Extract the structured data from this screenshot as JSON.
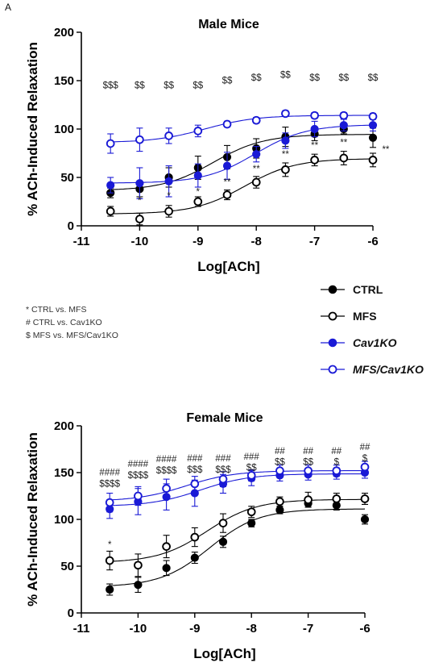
{
  "panel_label": "A",
  "legend": [
    {
      "label": "CTRL",
      "color": "#000000",
      "filled": true,
      "italic": false
    },
    {
      "label": "MFS",
      "color": "#000000",
      "filled": false,
      "italic": false
    },
    {
      "label": "Cav1KO",
      "color": "#1a1ad6",
      "filled": true,
      "italic": true
    },
    {
      "label": "MFS/Cav1KO",
      "color": "#1a1ad6",
      "filled": false,
      "italic": true
    }
  ],
  "notes": [
    "* CTRL vs. MFS",
    "# CTRL vs. Cav1KO",
    "$ MFS vs. MFS/Cav1KO"
  ],
  "chart_data": [
    {
      "type": "scatter",
      "title": "Male Mice",
      "xlabel": "Log[ACh]",
      "ylabel": "% ACh-Induced Relaxation",
      "xlim": [
        -11,
        -6
      ],
      "ylim": [
        0,
        200
      ],
      "xticks": [
        -11,
        -10,
        -9,
        -8,
        -7,
        -6
      ],
      "yticks": [
        0,
        50,
        100,
        150,
        200
      ],
      "x": [
        -10.5,
        -10,
        -9.5,
        -9,
        -8.5,
        -8,
        -7.5,
        -7,
        -6.5,
        -6
      ],
      "fit_curves": true,
      "series": [
        {
          "name": "CTRL",
          "color": "#000000",
          "filled": true,
          "values": [
            34,
            38,
            50,
            60,
            71,
            80,
            92,
            95,
            100,
            91
          ],
          "errors": [
            5,
            8,
            10,
            12,
            12,
            10,
            10,
            7,
            5,
            10
          ]
        },
        {
          "name": "MFS",
          "color": "#000000",
          "filled": false,
          "values": [
            15,
            7,
            15,
            25,
            32,
            45,
            58,
            68,
            70,
            68
          ],
          "errors": [
            5,
            6,
            6,
            5,
            5,
            6,
            7,
            6,
            7,
            7
          ]
        },
        {
          "name": "Cav1KO",
          "color": "#1a1ad6",
          "filled": true,
          "values": [
            42,
            44,
            46,
            52,
            62,
            74,
            88,
            100,
            104,
            104
          ],
          "errors": [
            8,
            16,
            16,
            12,
            14,
            8,
            8,
            8,
            6,
            6
          ]
        },
        {
          "name": "MFS/Cav1KO",
          "color": "#1a1ad6",
          "filled": false,
          "values": [
            85,
            89,
            93,
            98,
            105,
            109,
            116,
            114,
            114,
            113
          ],
          "errors": [
            10,
            12,
            8,
            6,
            3,
            3,
            3,
            3,
            3,
            3
          ]
        }
      ],
      "annotations": [
        {
          "x": -10.5,
          "y": 142,
          "text": "$$$"
        },
        {
          "x": -10,
          "y": 142,
          "text": "$$"
        },
        {
          "x": -9.5,
          "y": 142,
          "text": "$$"
        },
        {
          "x": -9,
          "y": 142,
          "text": "$$"
        },
        {
          "x": -8.5,
          "y": 147,
          "text": "$$"
        },
        {
          "x": -8,
          "y": 150,
          "text": "$$"
        },
        {
          "x": -7.5,
          "y": 153,
          "text": "$$"
        },
        {
          "x": -7,
          "y": 150,
          "text": "$$"
        },
        {
          "x": -6.5,
          "y": 150,
          "text": "$$"
        },
        {
          "x": -6,
          "y": 150,
          "text": "$$"
        },
        {
          "x": -10,
          "y": 23,
          "text": "*"
        },
        {
          "x": -9.5,
          "y": 28,
          "text": "*"
        },
        {
          "x": -9,
          "y": 32,
          "text": "*"
        },
        {
          "x": -8.5,
          "y": 42,
          "text": "**"
        },
        {
          "x": -8,
          "y": 56,
          "text": "**"
        },
        {
          "x": -7.5,
          "y": 71,
          "text": "**"
        },
        {
          "x": -7,
          "y": 80,
          "text": "**"
        },
        {
          "x": -6.5,
          "y": 83,
          "text": "**"
        },
        {
          "x": -5.78,
          "y": 76,
          "text": "**"
        }
      ]
    },
    {
      "type": "scatter",
      "title": "Female Mice",
      "xlabel": "Log[ACh]",
      "ylabel": "% ACh-Induced Relaxation",
      "xlim": [
        -11,
        -6
      ],
      "ylim": [
        0,
        200
      ],
      "xticks": [
        -11,
        -10,
        -9,
        -8,
        -7,
        -6
      ],
      "yticks": [
        0,
        50,
        100,
        150,
        200
      ],
      "x": [
        -10.5,
        -10,
        -9.5,
        -9,
        -8.5,
        -8,
        -7.5,
        -7,
        -6.5,
        -6
      ],
      "fit_curves": true,
      "series": [
        {
          "name": "CTRL",
          "color": "#000000",
          "filled": true,
          "values": [
            25,
            30,
            48,
            59,
            76,
            96,
            110,
            117,
            115,
            100
          ],
          "errors": [
            6,
            8,
            8,
            6,
            6,
            4,
            4,
            4,
            5,
            5
          ]
        },
        {
          "name": "MFS",
          "color": "#000000",
          "filled": false,
          "values": [
            56,
            51,
            71,
            81,
            96,
            108,
            119,
            121,
            122,
            122
          ],
          "errors": [
            10,
            12,
            12,
            10,
            10,
            6,
            5,
            8,
            6,
            6
          ]
        },
        {
          "name": "Cav1KO",
          "color": "#1a1ad6",
          "filled": true,
          "values": [
            111,
            119,
            124,
            128,
            138,
            144,
            147,
            148,
            149,
            150
          ],
          "errors": [
            10,
            14,
            14,
            14,
            10,
            8,
            6,
            6,
            6,
            6
          ]
        },
        {
          "name": "MFS/Cav1KO",
          "color": "#1a1ad6",
          "filled": false,
          "values": [
            118,
            125,
            133,
            138,
            143,
            147,
            152,
            152,
            152,
            156
          ],
          "errors": [
            10,
            10,
            10,
            8,
            8,
            6,
            6,
            6,
            6,
            6
          ]
        }
      ],
      "annotations": [
        {
          "x": -10.5,
          "y": 147,
          "text": "####"
        },
        {
          "x": -10.5,
          "y": 135,
          "text": "$$$$"
        },
        {
          "x": -10,
          "y": 156,
          "text": "####"
        },
        {
          "x": -10,
          "y": 144,
          "text": "$$$$"
        },
        {
          "x": -9.5,
          "y": 161,
          "text": "####"
        },
        {
          "x": -9.5,
          "y": 149,
          "text": "$$$$"
        },
        {
          "x": -9,
          "y": 162,
          "text": "###"
        },
        {
          "x": -9,
          "y": 150,
          "text": "$$$"
        },
        {
          "x": -8.5,
          "y": 162,
          "text": "###"
        },
        {
          "x": -8.5,
          "y": 150,
          "text": "$$$"
        },
        {
          "x": -8,
          "y": 164,
          "text": "###"
        },
        {
          "x": -8,
          "y": 152,
          "text": "$$"
        },
        {
          "x": -7.5,
          "y": 170,
          "text": "##"
        },
        {
          "x": -7.5,
          "y": 158,
          "text": "$$"
        },
        {
          "x": -7,
          "y": 170,
          "text": "##"
        },
        {
          "x": -7,
          "y": 158,
          "text": "$$"
        },
        {
          "x": -6.5,
          "y": 170,
          "text": "##"
        },
        {
          "x": -6.5,
          "y": 158,
          "text": "$"
        },
        {
          "x": -6,
          "y": 174,
          "text": "##"
        },
        {
          "x": -6,
          "y": 162,
          "text": "$"
        },
        {
          "x": -10.5,
          "y": 70,
          "text": "*"
        }
      ]
    }
  ]
}
